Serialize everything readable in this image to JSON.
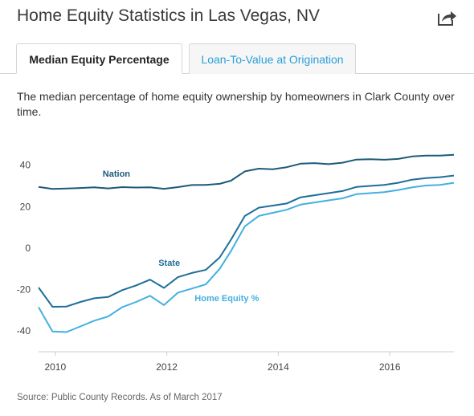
{
  "header": {
    "title": "Home Equity Statistics in Las Vegas, NV",
    "share_icon": "share-arrow-icon"
  },
  "tabs": [
    {
      "label": "Median Equity Percentage",
      "active": true
    },
    {
      "label": "Loan-To-Value at Origination",
      "active": false
    }
  ],
  "description": "The median percentage of home equity ownership by homeowners in Clark County over time.",
  "source": "Source: Public County Records. As of March 2017",
  "chart_data": {
    "type": "line",
    "x_ticks": [
      2010,
      2012,
      2014,
      2016
    ],
    "y_ticks": [
      -40,
      -20,
      0,
      20,
      40
    ],
    "xlim": [
      2009.7,
      2017.15
    ],
    "ylim": [
      -50,
      48
    ],
    "grid": false,
    "legend": "inline labels",
    "series": [
      {
        "name": "Nation",
        "color": "#1d5a78",
        "label_at": [
          2010.85,
          34.5
        ],
        "points": [
          [
            2009.7,
            29.5
          ],
          [
            2009.95,
            28.5
          ],
          [
            2010.2,
            28.7
          ],
          [
            2010.45,
            29.0
          ],
          [
            2010.7,
            29.3
          ],
          [
            2010.95,
            28.8
          ],
          [
            2011.2,
            29.4
          ],
          [
            2011.45,
            29.2
          ],
          [
            2011.7,
            29.3
          ],
          [
            2011.95,
            28.6
          ],
          [
            2012.2,
            29.4
          ],
          [
            2012.45,
            30.4
          ],
          [
            2012.7,
            30.5
          ],
          [
            2012.95,
            31.0
          ],
          [
            2013.15,
            32.5
          ],
          [
            2013.4,
            37.0
          ],
          [
            2013.65,
            38.3
          ],
          [
            2013.9,
            38.0
          ],
          [
            2014.15,
            39.0
          ],
          [
            2014.4,
            40.7
          ],
          [
            2014.65,
            41.0
          ],
          [
            2014.9,
            40.5
          ],
          [
            2015.15,
            41.2
          ],
          [
            2015.4,
            42.7
          ],
          [
            2015.65,
            42.9
          ],
          [
            2015.9,
            42.6
          ],
          [
            2016.15,
            43.0
          ],
          [
            2016.4,
            44.2
          ],
          [
            2016.65,
            44.6
          ],
          [
            2016.9,
            44.6
          ],
          [
            2017.15,
            45.0
          ]
        ]
      },
      {
        "name": "State",
        "color": "#1e6e9a",
        "label_at": [
          2011.85,
          -8.5
        ],
        "points": [
          [
            2009.7,
            -19.0
          ],
          [
            2009.95,
            -28.3
          ],
          [
            2010.2,
            -28.2
          ],
          [
            2010.45,
            -26.0
          ],
          [
            2010.7,
            -24.2
          ],
          [
            2010.95,
            -23.6
          ],
          [
            2011.2,
            -20.3
          ],
          [
            2011.45,
            -18.0
          ],
          [
            2011.7,
            -15.2
          ],
          [
            2011.95,
            -19.2
          ],
          [
            2012.2,
            -14.0
          ],
          [
            2012.45,
            -12.0
          ],
          [
            2012.7,
            -10.5
          ],
          [
            2012.95,
            -4.5
          ],
          [
            2013.15,
            4.0
          ],
          [
            2013.4,
            15.5
          ],
          [
            2013.65,
            19.5
          ],
          [
            2013.9,
            20.5
          ],
          [
            2014.15,
            21.5
          ],
          [
            2014.4,
            24.5
          ],
          [
            2014.65,
            25.5
          ],
          [
            2014.9,
            26.5
          ],
          [
            2015.15,
            27.5
          ],
          [
            2015.4,
            29.5
          ],
          [
            2015.65,
            30.0
          ],
          [
            2015.9,
            30.5
          ],
          [
            2016.15,
            31.5
          ],
          [
            2016.4,
            33.0
          ],
          [
            2016.65,
            33.8
          ],
          [
            2016.9,
            34.2
          ],
          [
            2017.15,
            35.0
          ]
        ]
      },
      {
        "name": "Home Equity %",
        "color": "#43b0e0",
        "label_at": [
          2012.5,
          -25.5
        ],
        "points": [
          [
            2009.7,
            -28.5
          ],
          [
            2009.95,
            -40.2
          ],
          [
            2010.2,
            -40.5
          ],
          [
            2010.45,
            -37.8
          ],
          [
            2010.7,
            -35.0
          ],
          [
            2010.95,
            -33.0
          ],
          [
            2011.2,
            -28.5
          ],
          [
            2011.45,
            -26.0
          ],
          [
            2011.7,
            -23.0
          ],
          [
            2011.95,
            -27.5
          ],
          [
            2012.2,
            -21.5
          ],
          [
            2012.45,
            -19.5
          ],
          [
            2012.7,
            -17.5
          ],
          [
            2012.95,
            -10.0
          ],
          [
            2013.15,
            -1.5
          ],
          [
            2013.4,
            10.5
          ],
          [
            2013.65,
            15.5
          ],
          [
            2013.9,
            17.0
          ],
          [
            2014.15,
            18.5
          ],
          [
            2014.4,
            21.0
          ],
          [
            2014.65,
            22.0
          ],
          [
            2014.9,
            23.0
          ],
          [
            2015.15,
            24.0
          ],
          [
            2015.4,
            26.0
          ],
          [
            2015.65,
            26.5
          ],
          [
            2015.9,
            27.0
          ],
          [
            2016.15,
            28.0
          ],
          [
            2016.4,
            29.3
          ],
          [
            2016.65,
            30.2
          ],
          [
            2016.9,
            30.5
          ],
          [
            2017.15,
            31.5
          ]
        ]
      }
    ]
  }
}
